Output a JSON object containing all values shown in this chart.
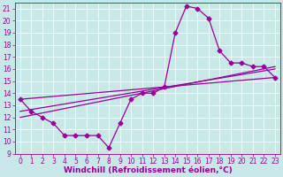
{
  "xlabel": "Windchill (Refroidissement éolien,°C)",
  "background_color": "#c8e8e8",
  "line_color": "#990099",
  "xlim": [
    -0.5,
    23.5
  ],
  "ylim": [
    9,
    21.5
  ],
  "xticks": [
    0,
    1,
    2,
    3,
    4,
    5,
    6,
    7,
    8,
    9,
    10,
    11,
    12,
    13,
    14,
    15,
    16,
    17,
    18,
    19,
    20,
    21,
    22,
    23
  ],
  "yticks": [
    9,
    10,
    11,
    12,
    13,
    14,
    15,
    16,
    17,
    18,
    19,
    20,
    21
  ],
  "line1_x": [
    0,
    1,
    2,
    3,
    4,
    5,
    6,
    7,
    8,
    9,
    10,
    11,
    12,
    13,
    14,
    15,
    16,
    17,
    18,
    19,
    20,
    21,
    22,
    23
  ],
  "line1_y": [
    13.5,
    12.5,
    12.0,
    11.5,
    10.5,
    10.5,
    10.5,
    10.5,
    9.5,
    11.5,
    13.5,
    14.0,
    14.0,
    14.5,
    19.0,
    21.2,
    21.0,
    20.2,
    17.5,
    16.5,
    16.5,
    16.2,
    16.2,
    15.3
  ],
  "line2_x": [
    0,
    23
  ],
  "line2_y": [
    13.5,
    15.3
  ],
  "line3_x": [
    0,
    23
  ],
  "line3_y": [
    12.5,
    16.0
  ],
  "line4_x": [
    0,
    23
  ],
  "line4_y": [
    12.0,
    16.2
  ],
  "marker": "D",
  "marker_size": 2.5,
  "font_color": "#990099",
  "tick_fontsize": 5.5,
  "xlabel_fontsize": 6.5,
  "grid_color": "#ffffff",
  "linewidth": 0.9
}
